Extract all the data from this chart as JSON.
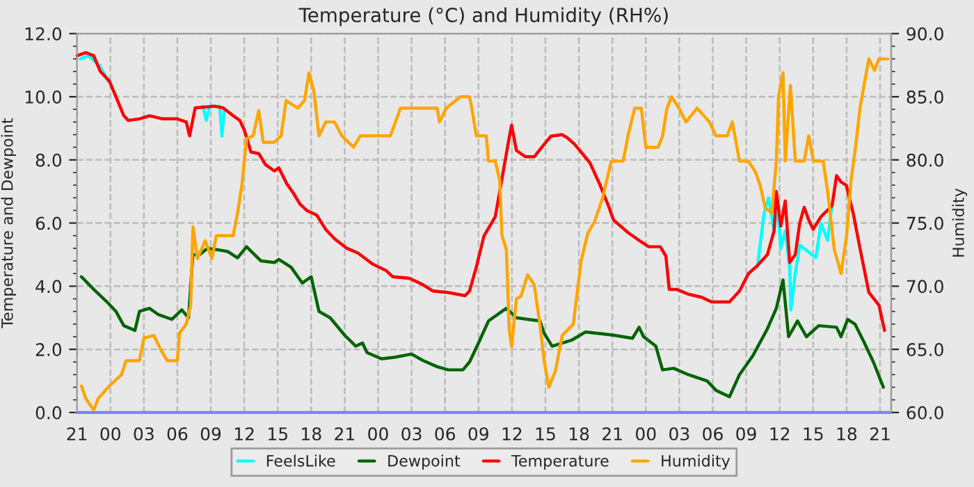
{
  "chart_data": {
    "type": "line",
    "title": "Temperature (°C) and Humidity (RH%)",
    "ylabel": "Temperature and Dewpoint",
    "y2label": "Humidity",
    "xlim": [
      "2000-01-01T21:00",
      "2000-01-04T22:00"
    ],
    "ylim": [
      0,
      12
    ],
    "y2lim": [
      60,
      90
    ],
    "xticks": [
      {
        "value": "2000-01-01T21:00",
        "label": "21"
      },
      {
        "value": "2000-01-02T00:00",
        "label": "00"
      },
      {
        "value": "2000-01-02T03:00",
        "label": "03"
      },
      {
        "value": "2000-01-02T06:00",
        "label": "06"
      },
      {
        "value": "2000-01-02T09:00",
        "label": "09"
      },
      {
        "value": "2000-01-02T12:00",
        "label": "12"
      },
      {
        "value": "2000-01-02T15:00",
        "label": "15"
      },
      {
        "value": "2000-01-02T18:00",
        "label": "18"
      },
      {
        "value": "2000-01-02T21:00",
        "label": "21"
      },
      {
        "value": "2000-01-03T00:00",
        "label": "00"
      },
      {
        "value": "2000-01-03T03:00",
        "label": "03"
      },
      {
        "value": "2000-01-03T06:00",
        "label": "06"
      },
      {
        "value": "2000-01-03T09:00",
        "label": "09"
      },
      {
        "value": "2000-01-03T12:00",
        "label": "12"
      },
      {
        "value": "2000-01-03T15:00",
        "label": "15"
      },
      {
        "value": "2000-01-03T18:00",
        "label": "18"
      },
      {
        "value": "2000-01-03T21:00",
        "label": "21"
      },
      {
        "value": "2000-01-04T00:00",
        "label": "00"
      },
      {
        "value": "2000-01-04T03:00",
        "label": "03"
      },
      {
        "value": "2000-01-04T06:00",
        "label": "06"
      },
      {
        "value": "2000-01-04T09:00",
        "label": "09"
      },
      {
        "value": "2000-01-04T12:00",
        "label": "12"
      },
      {
        "value": "2000-01-04T15:00",
        "label": "15"
      },
      {
        "value": "2000-01-04T18:00",
        "label": "18"
      },
      {
        "value": "2000-01-04T21:00",
        "label": "21"
      }
    ],
    "yticks": [
      {
        "value": 0,
        "label": "0.0"
      },
      {
        "value": 2,
        "label": "2.0"
      },
      {
        "value": 4,
        "label": "4.0"
      },
      {
        "value": 6,
        "label": "6.0"
      },
      {
        "value": 8,
        "label": "8.0"
      },
      {
        "value": 10,
        "label": "10.0"
      },
      {
        "value": 12,
        "label": "12.0"
      }
    ],
    "y2ticks": [
      {
        "value": 60,
        "label": "60.0"
      },
      {
        "value": 65,
        "label": "65.0"
      },
      {
        "value": 70,
        "label": "70.0"
      },
      {
        "value": 75,
        "label": "75.0"
      },
      {
        "value": 80,
        "label": "80.0"
      },
      {
        "value": 85,
        "label": "85.0"
      },
      {
        "value": 90,
        "label": "90.0"
      }
    ],
    "grid": true,
    "legend": "bottom",
    "marker": "none",
    "line_style": "solid",
    "series": [
      {
        "color": "#8080ff",
        "x": [
          "2000-01-01T21:00",
          "2000-01-04T22:00"
        ],
        "values": [
          0,
          0
        ]
      },
      {
        "name": "FeelsLike",
        "color": "#00ffff",
        "x": [
          "2000-01-01T21:18",
          "2000-01-01T22:00",
          "2000-01-01T23:00",
          "2000-01-01T23:48",
          "2000-01-02T00:00",
          "2000-01-02T08:18",
          "2000-01-02T08:36",
          "2000-01-02T08:54",
          "2000-01-02T09:48",
          "2000-01-02T10:00",
          "2000-01-02T10:12",
          "2000-01-02T10:24",
          "2000-01-04T10:00",
          "2000-01-04T10:36",
          "2000-01-04T11:00",
          "2000-01-04T11:30",
          "2000-01-04T11:48",
          "2000-01-04T12:06",
          "2000-01-04T12:30",
          "2000-01-04T12:54",
          "2000-01-04T13:00",
          "2000-01-04T13:24",
          "2000-01-04T13:48",
          "2000-01-04T15:15",
          "2000-01-04T15:42",
          "2000-01-04T16:18",
          "2000-01-04T16:42"
        ],
        "values": [
          11.2,
          11.3,
          11.0,
          10.5,
          null,
          9.7,
          9.25,
          9.7,
          9.7,
          8.75,
          9.6,
          null,
          4.6,
          6.3,
          6.8,
          5.75,
          6.6,
          5.2,
          5.75,
          4.6,
          3.25,
          4.4,
          5.3,
          4.9,
          6.0,
          5.45,
          6.6
        ]
      },
      {
        "name": "Dewpoint",
        "color": "#006400",
        "x": [
          "2000-01-01T21:24",
          "2000-01-01T22:30",
          "2000-01-01T23:42",
          "2000-01-02T00:30",
          "2000-01-02T01:12",
          "2000-01-02T02:12",
          "2000-01-02T02:36",
          "2000-01-02T03:30",
          "2000-01-02T04:18",
          "2000-01-02T05:30",
          "2000-01-02T06:24",
          "2000-01-02T07:00",
          "2000-01-02T07:24",
          "2000-01-02T08:00",
          "2000-01-02T08:42",
          "2000-01-02T09:42",
          "2000-01-02T10:30",
          "2000-01-02T11:24",
          "2000-01-02T12:12",
          "2000-01-02T13:30",
          "2000-01-02T14:42",
          "2000-01-02T15:06",
          "2000-01-02T16:12",
          "2000-01-02T17:12",
          "2000-01-02T18:00",
          "2000-01-02T18:42",
          "2000-01-02T19:42",
          "2000-01-02T21:00",
          "2000-01-02T22:00",
          "2000-01-02T22:36",
          "2000-01-02T23:00",
          "2000-01-03T00:18",
          "2000-01-03T01:30",
          "2000-01-03T03:00",
          "2000-01-03T04:00",
          "2000-01-03T05:18",
          "2000-01-03T06:18",
          "2000-01-03T07:36",
          "2000-01-03T08:12",
          "2000-01-03T09:00",
          "2000-01-03T09:54",
          "2000-01-03T11:06",
          "2000-01-03T11:30",
          "2000-01-03T12:24",
          "2000-01-03T14:30",
          "2000-01-03T14:54",
          "2000-01-03T15:36",
          "2000-01-03T16:30",
          "2000-01-03T17:24",
          "2000-01-03T18:36",
          "2000-01-03T19:54",
          "2000-01-03T21:06",
          "2000-01-03T22:48",
          "2000-01-03T23:24",
          "2000-01-03T23:48",
          "2000-01-04T00:54",
          "2000-01-04T01:30",
          "2000-01-04T02:30",
          "2000-01-04T03:48",
          "2000-01-04T05:30",
          "2000-01-04T06:18",
          "2000-01-04T07:30",
          "2000-01-04T08:24",
          "2000-01-04T09:36",
          "2000-01-04T10:54",
          "2000-01-04T11:42",
          "2000-01-04T12:18",
          "2000-01-04T12:48",
          "2000-01-04T13:36",
          "2000-01-04T14:24",
          "2000-01-04T15:30",
          "2000-01-04T17:06",
          "2000-01-04T17:30",
          "2000-01-04T18:06",
          "2000-01-04T18:45",
          "2000-01-04T19:36",
          "2000-01-04T20:24",
          "2000-01-04T21:18"
        ],
        "values": [
          4.3,
          3.9,
          3.5,
          3.2,
          2.75,
          2.6,
          3.2,
          3.3,
          3.1,
          2.95,
          3.25,
          3.0,
          5.0,
          5.0,
          5.2,
          5.15,
          5.1,
          4.9,
          5.25,
          4.8,
          4.75,
          4.85,
          4.6,
          4.1,
          4.3,
          3.2,
          3.0,
          2.45,
          2.1,
          2.2,
          1.9,
          1.7,
          1.75,
          1.85,
          1.65,
          1.45,
          1.35,
          1.35,
          1.6,
          2.2,
          2.9,
          3.2,
          3.3,
          3.0,
          2.9,
          2.5,
          2.1,
          2.2,
          2.3,
          2.55,
          2.5,
          2.45,
          2.35,
          2.7,
          2.4,
          2.1,
          1.35,
          1.4,
          1.2,
          1.0,
          0.7,
          0.5,
          1.2,
          1.8,
          2.65,
          3.3,
          4.2,
          2.4,
          2.9,
          2.4,
          2.75,
          2.7,
          2.4,
          2.95,
          2.8,
          2.2,
          1.6,
          0.8
        ]
      },
      {
        "name": "Temperature",
        "color": "#ff0000",
        "x": [
          "2000-01-01T21:00",
          "2000-01-01T21:48",
          "2000-01-01T22:30",
          "2000-01-01T23:06",
          "2000-01-01T23:54",
          "2000-01-02T00:30",
          "2000-01-02T01:12",
          "2000-01-02T01:36",
          "2000-01-02T02:36",
          "2000-01-02T03:30",
          "2000-01-02T04:42",
          "2000-01-02T06:00",
          "2000-01-02T06:48",
          "2000-01-02T07:06",
          "2000-01-02T07:36",
          "2000-01-02T09:18",
          "2000-01-02T10:06",
          "2000-01-02T11:00",
          "2000-01-02T11:36",
          "2000-01-02T12:00",
          "2000-01-02T12:36",
          "2000-01-02T13:18",
          "2000-01-02T13:54",
          "2000-01-02T14:42",
          "2000-01-02T15:06",
          "2000-01-02T15:48",
          "2000-01-02T16:24",
          "2000-01-02T17:00",
          "2000-01-02T17:36",
          "2000-01-02T18:30",
          "2000-01-02T19:18",
          "2000-01-02T20:06",
          "2000-01-02T21:12",
          "2000-01-02T22:12",
          "2000-01-02T23:30",
          "2000-01-03T00:42",
          "2000-01-03T01:18",
          "2000-01-03T02:48",
          "2000-01-03T04:00",
          "2000-01-03T04:54",
          "2000-01-03T06:18",
          "2000-01-03T07:48",
          "2000-01-03T08:12",
          "2000-01-03T08:48",
          "2000-01-03T09:30",
          "2000-01-03T10:30",
          "2000-01-03T11:06",
          "2000-01-03T11:45",
          "2000-01-03T11:58",
          "2000-01-03T12:24",
          "2000-01-03T13:12",
          "2000-01-03T14:00",
          "2000-01-03T14:54",
          "2000-01-03T15:30",
          "2000-01-03T16:30",
          "2000-01-03T16:58",
          "2000-01-03T17:36",
          "2000-01-03T18:12",
          "2000-01-03T19:00",
          "2000-01-03T19:54",
          "2000-01-03T20:42",
          "2000-01-03T21:06",
          "2000-01-03T22:24",
          "2000-01-03T23:12",
          "2000-01-04T00:15",
          "2000-01-04T01:18",
          "2000-01-04T01:48",
          "2000-01-04T02:06",
          "2000-01-04T02:45",
          "2000-01-04T03:48",
          "2000-01-04T05:00",
          "2000-01-04T05:54",
          "2000-01-04T07:30",
          "2000-01-04T08:24",
          "2000-01-04T09:12",
          "2000-01-04T10:00",
          "2000-01-04T10:54",
          "2000-01-04T11:30",
          "2000-01-04T11:42",
          "2000-01-04T12:06",
          "2000-01-04T12:30",
          "2000-01-04T12:54",
          "2000-01-04T13:24",
          "2000-01-04T13:48",
          "2000-01-04T14:12",
          "2000-01-04T14:36",
          "2000-01-04T15:00",
          "2000-01-04T15:42",
          "2000-01-04T16:42",
          "2000-01-04T17:06",
          "2000-01-04T17:30",
          "2000-01-04T17:58",
          "2000-01-04T18:36",
          "2000-01-04T19:12",
          "2000-01-04T20:00",
          "2000-01-04T20:54",
          "2000-01-04T21:24"
        ],
        "values": [
          11.3,
          11.4,
          11.3,
          10.8,
          10.5,
          10.0,
          9.4,
          9.25,
          9.3,
          9.4,
          9.3,
          9.3,
          9.2,
          8.76,
          9.65,
          9.7,
          9.65,
          9.4,
          9.25,
          8.95,
          8.25,
          8.2,
          7.85,
          7.65,
          7.75,
          7.25,
          6.95,
          6.6,
          6.4,
          6.25,
          5.8,
          5.5,
          5.2,
          5.05,
          4.7,
          4.5,
          4.3,
          4.25,
          4.05,
          3.85,
          3.8,
          3.7,
          3.85,
          4.6,
          5.6,
          6.2,
          7.4,
          8.7,
          9.1,
          8.3,
          8.1,
          8.1,
          8.5,
          8.75,
          8.8,
          8.7,
          8.5,
          8.25,
          7.9,
          7.2,
          6.5,
          6.1,
          5.7,
          5.5,
          5.25,
          5.25,
          4.95,
          3.9,
          3.9,
          3.75,
          3.65,
          3.5,
          3.5,
          3.85,
          4.4,
          4.65,
          5.0,
          5.75,
          7.0,
          5.9,
          6.7,
          4.75,
          5.0,
          6.0,
          6.5,
          6.1,
          5.8,
          6.2,
          6.55,
          7.5,
          7.3,
          7.2,
          6.3,
          5.2,
          3.8,
          3.4,
          2.6
        ]
      },
      {
        "name": "Humidity",
        "color": "#ffa500",
        "axis": "y2",
        "x": [
          "2000-01-01T21:24",
          "2000-01-01T21:48",
          "2000-01-01T22:30",
          "2000-01-01T22:54",
          "2000-01-01T23:54",
          "2000-01-02T01:00",
          "2000-01-02T01:24",
          "2000-01-02T02:36",
          "2000-01-02T03:00",
          "2000-01-02T03:54",
          "2000-01-02T04:30",
          "2000-01-02T05:06",
          "2000-01-02T06:00",
          "2000-01-02T06:12",
          "2000-01-02T06:48",
          "2000-01-02T07:12",
          "2000-01-02T07:24",
          "2000-01-02T07:48",
          "2000-01-02T08:30",
          "2000-01-02T09:06",
          "2000-01-02T09:30",
          "2000-01-02T11:00",
          "2000-01-02T11:24",
          "2000-01-02T11:48",
          "2000-01-02T12:12",
          "2000-01-02T12:48",
          "2000-01-02T13:18",
          "2000-01-02T13:42",
          "2000-01-02T14:42",
          "2000-01-02T15:18",
          "2000-01-02T15:45",
          "2000-01-02T16:48",
          "2000-01-02T17:24",
          "2000-01-02T17:48",
          "2000-01-02T18:15",
          "2000-01-02T18:42",
          "2000-01-02T19:18",
          "2000-01-02T20:06",
          "2000-01-02T20:45",
          "2000-01-02T21:48",
          "2000-01-02T22:24",
          "2000-01-02T23:30",
          "2000-01-03T01:06",
          "2000-01-03T02:00",
          "2000-01-03T03:48",
          "2000-01-03T05:18",
          "2000-01-03T05:30",
          "2000-01-03T06:06",
          "2000-01-03T07:24",
          "2000-01-03T08:12",
          "2000-01-03T08:24",
          "2000-01-03T08:48",
          "2000-01-03T09:42",
          "2000-01-03T09:54",
          "2000-01-03T10:30",
          "2000-01-03T10:54",
          "2000-01-03T11:06",
          "2000-01-03T11:30",
          "2000-01-03T11:45",
          "2000-01-03T11:58",
          "2000-01-03T12:24",
          "2000-01-03T12:48",
          "2000-01-03T13:24",
          "2000-01-03T14:00",
          "2000-01-03T14:30",
          "2000-01-03T14:54",
          "2000-01-03T15:18",
          "2000-01-03T15:54",
          "2000-01-03T16:30",
          "2000-01-03T17:30",
          "2000-01-03T18:12",
          "2000-01-03T18:48",
          "2000-01-03T19:24",
          "2000-01-03T20:06",
          "2000-01-03T20:54",
          "2000-01-03T21:58",
          "2000-01-03T22:24",
          "2000-01-03T23:00",
          "2000-01-03T23:36",
          "2000-01-04T00:00",
          "2000-01-04T01:06",
          "2000-01-04T01:30",
          "2000-01-04T01:54",
          "2000-01-04T02:18",
          "2000-01-04T02:58",
          "2000-01-04T03:36",
          "2000-01-04T04:36",
          "2000-01-04T05:42",
          "2000-01-04T06:18",
          "2000-01-04T07:18",
          "2000-01-04T07:45",
          "2000-01-04T08:24",
          "2000-01-04T09:12",
          "2000-01-04T09:48",
          "2000-01-04T10:15",
          "2000-01-04T10:42",
          "2000-01-04T11:18",
          "2000-01-04T11:42",
          "2000-01-04T11:54",
          "2000-01-04T12:18",
          "2000-01-04T12:30",
          "2000-01-04T12:58",
          "2000-01-04T13:24",
          "2000-01-04T14:12",
          "2000-01-04T14:36",
          "2000-01-04T15:02",
          "2000-01-04T15:54",
          "2000-01-04T16:18",
          "2000-01-04T16:54",
          "2000-01-04T17:30",
          "2000-01-04T18:00",
          "2000-01-04T18:24",
          "2000-01-04T18:48",
          "2000-01-04T19:12",
          "2000-01-04T19:36",
          "2000-01-04T20:00",
          "2000-01-04T20:30",
          "2000-01-04T20:54",
          "2000-01-04T21:42"
        ],
        "values": [
          62.1,
          61.1,
          60.2,
          61.1,
          62.1,
          63.0,
          64.1,
          64.1,
          65.9,
          66.1,
          65.0,
          64.1,
          64.1,
          66.3,
          67.0,
          68.5,
          74.7,
          72.2,
          73.6,
          72.2,
          74.0,
          74.0,
          75.8,
          78.1,
          81.7,
          81.9,
          83.9,
          81.4,
          81.4,
          81.9,
          84.7,
          84.1,
          84.7,
          86.9,
          85.4,
          81.9,
          83.0,
          83.0,
          81.9,
          81.0,
          81.9,
          81.9,
          81.9,
          84.1,
          84.1,
          84.1,
          83.0,
          84.1,
          85.0,
          85.0,
          84.1,
          81.9,
          81.9,
          79.9,
          79.9,
          78.4,
          74.0,
          72.9,
          66.6,
          65.2,
          69.0,
          69.2,
          70.9,
          70.1,
          67.0,
          64.0,
          62.0,
          63.3,
          66.1,
          67.0,
          72.0,
          74.2,
          75.1,
          76.9,
          79.9,
          79.9,
          81.9,
          84.1,
          84.1,
          81.0,
          81.0,
          81.9,
          84.1,
          85.0,
          84.1,
          83.0,
          84.1,
          83.0,
          81.9,
          81.9,
          83.0,
          79.9,
          79.9,
          79.1,
          78.0,
          76.2,
          75.8,
          79.9,
          85.0,
          86.9,
          79.9,
          85.9,
          79.9,
          79.9,
          81.9,
          79.9,
          79.9,
          77.5,
          72.9,
          71.0,
          74.0,
          78.4,
          81.0,
          84.1,
          86.1,
          88.0,
          87.1,
          88.0,
          88.0
        ]
      }
    ]
  }
}
